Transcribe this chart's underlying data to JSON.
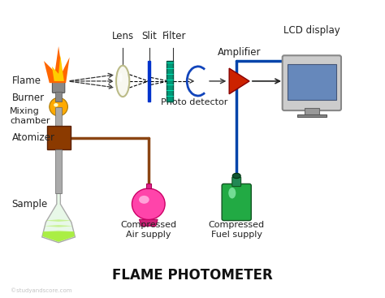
{
  "title": "FLAME PHOTOMETER",
  "watermark": "©studyandscore.com",
  "bg_color": "#ffffff",
  "labels": {
    "flame": "Flame",
    "burner": "Burner",
    "mixing_chamber": "Mixing\nchamber",
    "atomizer": "Atomizer",
    "sample": "Sample",
    "lens": "Lens",
    "slit": "Slit",
    "filter": "Filter",
    "photo_detector": "Photo detector",
    "amplifier": "Amplifier",
    "lcd": "LCD display",
    "air": "Compressed\nAir supply",
    "fuel": "Compressed\nFuel supply"
  },
  "colors": {
    "flame_orange": "#FF6600",
    "flame_yellow": "#FFCC00",
    "flame_red": "#FF2200",
    "burner_gray": "#888888",
    "mixing_yellow": "#FFAA00",
    "atomizer_brown": "#8B3A00",
    "sample_green": "#AAEE44",
    "flask_glass": "#DDDDFF",
    "lens_white": "#F5F5F0",
    "lens_outline": "#CCCCAA",
    "slit_blue": "#0033CC",
    "filter_teal": "#009977",
    "photodetector_blue": "#1144BB",
    "amplifier_red": "#CC2200",
    "lcd_blue": "#6688BB",
    "lcd_gray": "#999999",
    "air_pink": "#FF4488",
    "fuel_green": "#228833",
    "tube_gray": "#AAAAAA",
    "pipe_brown": "#8B4513",
    "pipe_blue": "#0044AA",
    "arrow_dark": "#222222",
    "text_dark": "#222222"
  }
}
